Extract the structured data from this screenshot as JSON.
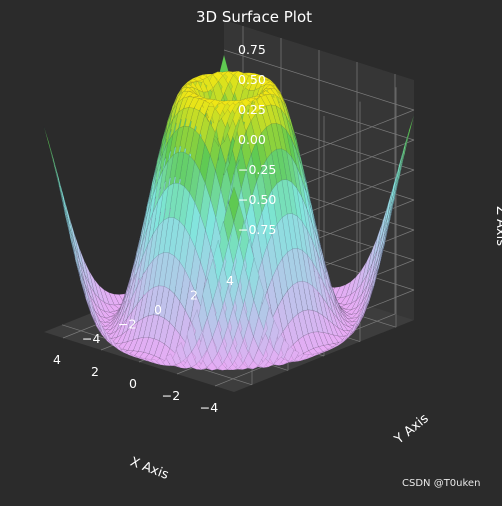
{
  "colors": {
    "background": "#2b2b2b",
    "pane_back": "#363636",
    "pane_side": "#313131",
    "pane_floor": "#3d3d3d",
    "grid": "#7a7a7a",
    "text": "#ffffff",
    "surface_low": "#e9aaf5",
    "surface_mid": "#7fe6dc",
    "surface_high": "#5fc94f",
    "surface_top": "#f5e713"
  },
  "chart_data": {
    "type": "surface",
    "title": "3D Surface Plot",
    "xlabel": "X Axis",
    "ylabel": "Y Axis",
    "zlabel": "Z Axis",
    "function": "z = sin(sqrt(x^2 + y^2))",
    "xlim": [
      -5,
      5
    ],
    "ylim": [
      -5,
      5
    ],
    "zlim": [
      -1,
      1
    ],
    "x_ticks": [
      "−4",
      "−2",
      "0",
      "2",
      "4"
    ],
    "y_ticks": [
      "−4",
      "−2",
      "0",
      "2",
      "4"
    ],
    "z_ticks": [
      "0.75",
      "0.50",
      "0.25",
      "0.00",
      "−0.25",
      "−0.50",
      "−0.75"
    ],
    "grid": true,
    "colormap": "cool-pink to cyan to green to yellow"
  },
  "watermark": "CSDN @T0uken"
}
